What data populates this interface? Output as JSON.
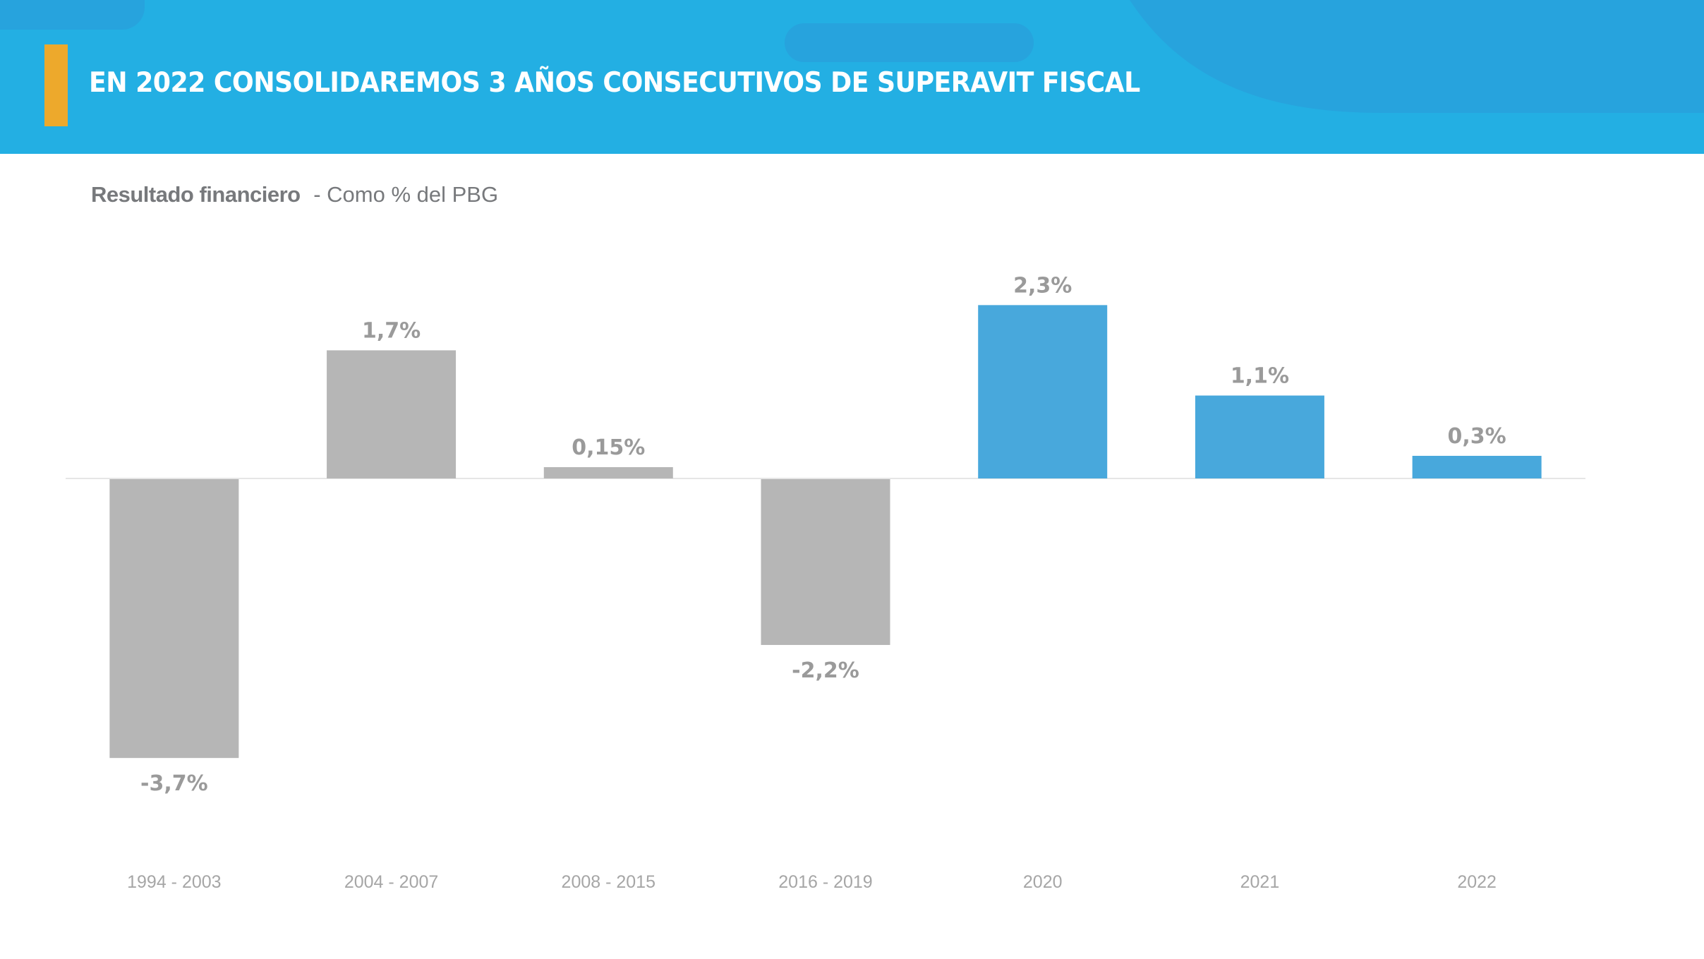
{
  "header": {
    "title": "EN 2022 CONSOLIDAREMOS 3 AÑOS CONSECUTIVOS DE SUPERAVIT FISCAL",
    "background_color": "#23AFE3",
    "accent_color": "#EDA92C"
  },
  "subtitle": {
    "strong": "Resultado financiero",
    "light": "- Como % del PBG"
  },
  "chart_data": {
    "type": "bar",
    "title": "Resultado financiero - Como % del PBG",
    "xlabel": "",
    "ylabel": "",
    "ylim": [
      -3.7,
      2.3
    ],
    "grid": false,
    "legend": "none",
    "categories": [
      "1994 - 2003",
      "2004 - 2007",
      "2008 - 2015",
      "2016 - 2019",
      "2020",
      "2021",
      "2022"
    ],
    "values": [
      -3.7,
      1.7,
      0.15,
      -2.2,
      2.3,
      1.1,
      0.3
    ],
    "data_labels": [
      "-3,7%",
      "1,7%",
      "0,15%",
      "-2,2%",
      "2,3%",
      "1,1%",
      "0,3%"
    ],
    "bar_colors": [
      "#B6B6B6",
      "#B6B6B6",
      "#B6B6B6",
      "#B6B6B6",
      "#48A8DC",
      "#48A8DC",
      "#48A8DC"
    ],
    "units": "% del PBG"
  }
}
